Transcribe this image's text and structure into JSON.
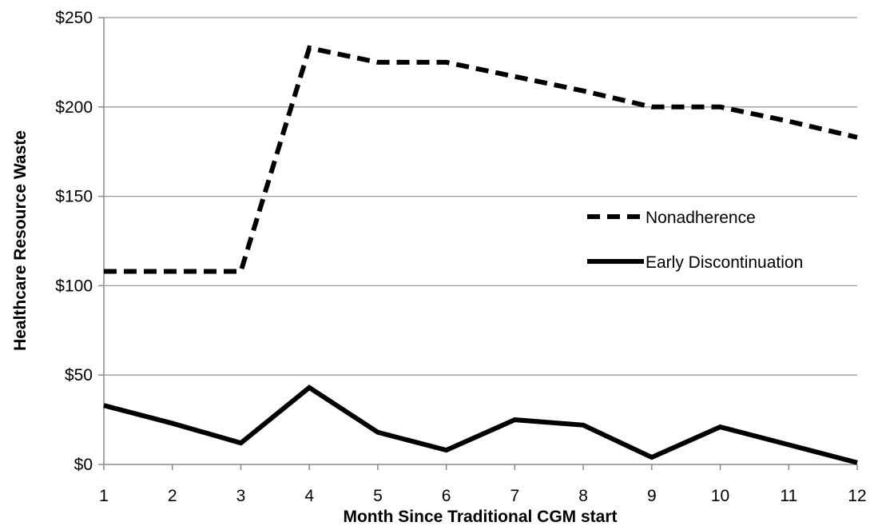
{
  "chart_data": {
    "type": "line",
    "title": "",
    "xlabel": "Month Since Traditional CGM start",
    "ylabel": "Healthcare Resource Waste",
    "x": [
      1,
      2,
      3,
      4,
      5,
      6,
      7,
      8,
      9,
      10,
      11,
      12
    ],
    "x_tick_labels": [
      "1",
      "2",
      "3",
      "4",
      "5",
      "6",
      "7",
      "8",
      "9",
      "10",
      "11",
      "12"
    ],
    "y_ticks": [
      0,
      50,
      100,
      150,
      200,
      250
    ],
    "y_tick_labels": [
      "$0",
      "$50",
      "$100",
      "$150",
      "$200",
      "$250"
    ],
    "ylim": [
      0,
      250
    ],
    "xlim": [
      1,
      12
    ],
    "grid": "horizontal",
    "legend_position": "right-center",
    "series": [
      {
        "name": "Nonadherence",
        "style": "dashed",
        "color": "#000000",
        "values": [
          108,
          108,
          108,
          233,
          225,
          225,
          217,
          209,
          200,
          200,
          192,
          183
        ]
      },
      {
        "name": "Early Discontinuation",
        "style": "solid",
        "color": "#000000",
        "values": [
          33,
          23,
          12,
          43,
          18,
          8,
          25,
          22,
          4,
          21,
          11,
          1
        ]
      }
    ]
  }
}
